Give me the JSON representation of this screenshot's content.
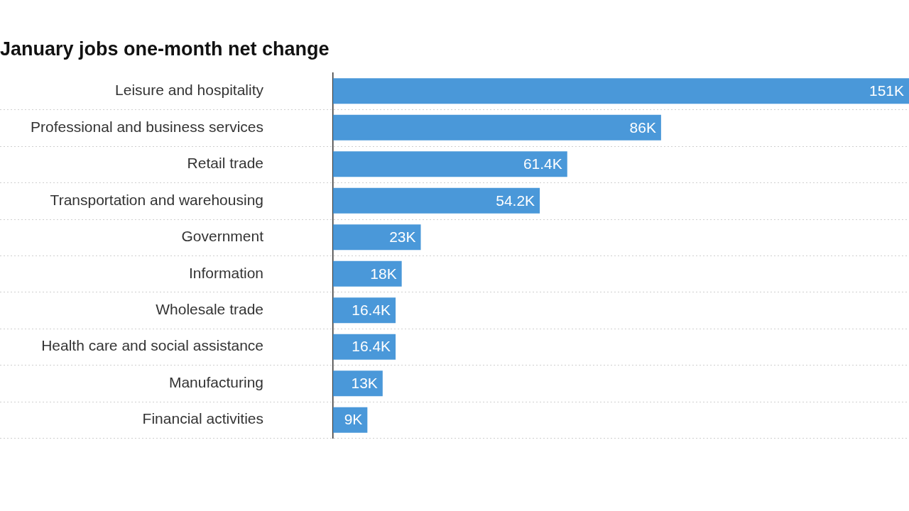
{
  "chart_data": {
    "type": "bar",
    "orientation": "horizontal",
    "title": "January jobs one-month net change",
    "categories": [
      "Leisure and hospitality",
      "Professional and business services",
      "Retail trade",
      "Transportation and warehousing",
      "Government",
      "Information",
      "Wholesale trade",
      "Health care and social assistance",
      "Manufacturing",
      "Financial activities"
    ],
    "values": [
      151,
      86,
      61.4,
      54.2,
      23,
      18,
      16.4,
      16.4,
      13,
      9
    ],
    "value_labels": [
      "151K",
      "86K",
      "61.4K",
      "54.2K",
      "23K",
      "18K",
      "16.4K",
      "16.4K",
      "13K",
      "9K"
    ],
    "color": "#4a98d9",
    "xlim": [
      0,
      151
    ],
    "grid": true,
    "data_labels": true,
    "tick_labels": "y"
  }
}
